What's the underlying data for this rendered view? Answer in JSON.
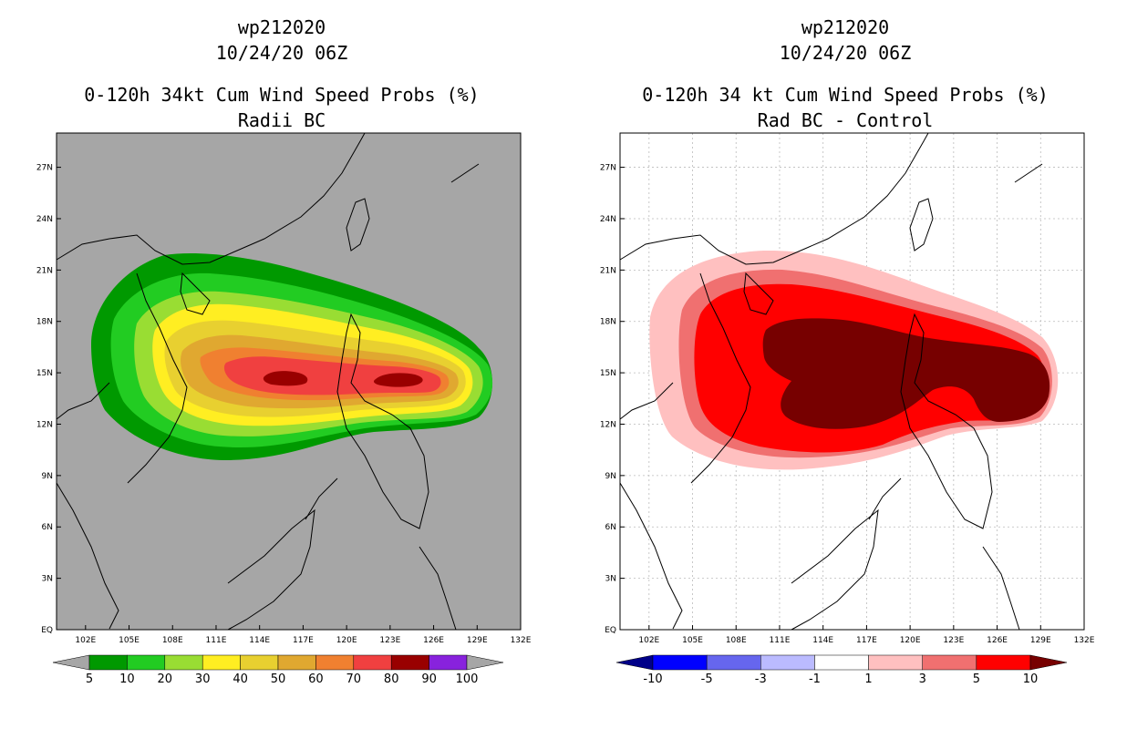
{
  "left_panel": {
    "storm_id": "wp212020",
    "datetime": "10/24/20 06Z",
    "title": "0-120h 34kt Cum Wind Speed Probs (%)",
    "subtitle": "Radii BC",
    "background": "#a6a6a6",
    "colorbar": {
      "labels": [
        "5",
        "10",
        "20",
        "30",
        "40",
        "50",
        "60",
        "70",
        "80",
        "90",
        "100"
      ],
      "colors": [
        "#009900",
        "#22cc22",
        "#99dd33",
        "#ffee22",
        "#e8d030",
        "#e0a830",
        "#f08030",
        "#f04040",
        "#990000",
        "#8822dd"
      ],
      "under": "#a6a6a6",
      "over": "#a6a6a6"
    }
  },
  "right_panel": {
    "storm_id": "wp212020",
    "datetime": "10/24/20 06Z",
    "title": "0-120h 34 kt Cum Wind Speed Probs (%)",
    "subtitle": "Rad BC - Control",
    "background": "#ffffff",
    "colorbar": {
      "labels": [
        "-10",
        "-5",
        "-3",
        "-1",
        "1",
        "3",
        "5",
        "10"
      ],
      "colors": [
        "#0000ff",
        "#6666ee",
        "#bbbbff",
        "#ffffff",
        "#ffc0c0",
        "#f07070",
        "#ff0000"
      ],
      "under": "#000088",
      "over": "#770000"
    }
  },
  "axes": {
    "lon_ticks": [
      "102E",
      "105E",
      "108E",
      "111E",
      "114E",
      "117E",
      "120E",
      "123E",
      "126E",
      "129E",
      "132E"
    ],
    "lat_ticks": [
      "EQ",
      "3N",
      "6N",
      "9N",
      "12N",
      "15N",
      "18N",
      "21N",
      "24N",
      "27N"
    ],
    "lon_range": [
      100,
      132
    ],
    "lat_range": [
      0,
      29
    ]
  },
  "chart_data": [
    {
      "type": "heatmap",
      "title": "0-120h 34kt Cum Wind Speed Probs (%) — Radii BC",
      "variable": "cumulative 34kt wind speed probability (%)",
      "levels": [
        5,
        10,
        20,
        30,
        40,
        50,
        60,
        70,
        80,
        90,
        100
      ],
      "max_region": {
        "lon": [
          115.5,
          125.5
        ],
        "lat": [
          14.2,
          15.0
        ],
        "value_range": [
          80,
          90
        ]
      },
      "outer_5pct_extent": {
        "lon": [
          102.5,
          129.6
        ],
        "lat": [
          9.6,
          21.8
        ]
      }
    },
    {
      "type": "heatmap",
      "title": "0-120h 34 kt Cum Wind Speed Probs (%) — Rad BC - Control",
      "variable": "probability difference (%)",
      "levels": [
        -10,
        -5,
        -3,
        -1,
        1,
        3,
        5,
        10
      ],
      "max_region": {
        "lon": [
          113.5,
          129.0
        ],
        "lat": [
          12.0,
          17.9
        ],
        "value": ">10"
      },
      "outer_1pct_extent": {
        "lon": [
          104.5,
          129.5
        ],
        "lat": [
          9.5,
          21.5
        ]
      }
    }
  ]
}
